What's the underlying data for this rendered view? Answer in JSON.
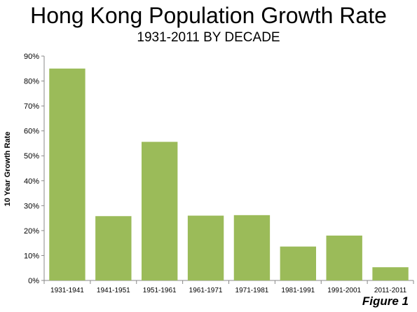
{
  "chart_data": {
    "type": "bar",
    "title": "Hong Kong Population Growth Rate",
    "subtitle": "1931-2011 BY DECADE",
    "ylabel": "10 Year Growth Rate",
    "xlabel": "",
    "categories": [
      "1931-1941",
      "1941-1951",
      "1951-1961",
      "1961-1971",
      "1971-1981",
      "1981-1991",
      "1991-2001",
      "2011-2011"
    ],
    "values": [
      85,
      25.8,
      55.6,
      26,
      26.2,
      13.6,
      18,
      5.3
    ],
    "ylim": [
      0,
      90
    ],
    "yticks": [
      "0%",
      "10%",
      "20%",
      "30%",
      "40%",
      "50%",
      "60%",
      "70%",
      "80%",
      "90%"
    ],
    "grid": false,
    "legend": "none",
    "bar_color": "#9bbb59",
    "annotation": "Figure 1"
  }
}
